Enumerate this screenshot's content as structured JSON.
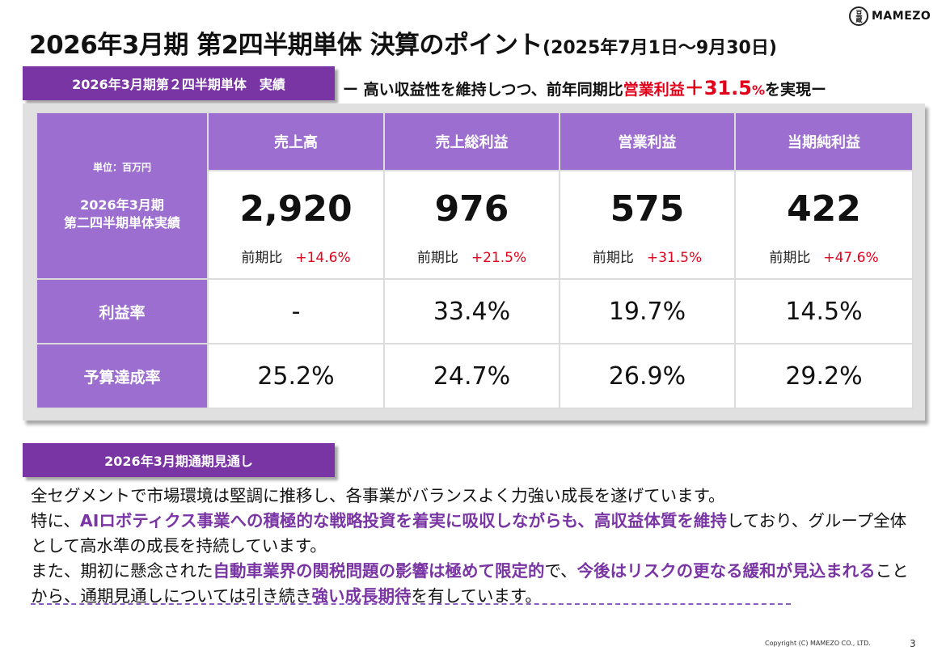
{
  "header": {
    "title": "2026年3月期 第2四半期単体 決算のポイント",
    "period": "(2025年7月1日～9月30日)"
  },
  "logo": {
    "text": "MAMEZO",
    "mark": "豆蔵"
  },
  "results_section": {
    "banner": "2026年3月期第２四半期単体　実績",
    "tagline_prefix": "ー 高い収益性を維持しつつ、前年同期比",
    "tagline_highlight": "営業利益",
    "tagline_value": "＋31.5",
    "tagline_percent": "%",
    "tagline_suffix": "を実現ー"
  },
  "table": {
    "unit": "単位：百万円",
    "row_label_line1": "2026年3月期",
    "row_label_line2": "第二四半期単体実績",
    "columns": [
      "売上高",
      "売上総利益",
      "営業利益",
      "当期純利益"
    ],
    "actuals": [
      "2,920",
      "976",
      "575",
      "422"
    ],
    "compare_label": "前期比",
    "yoy": [
      "+14.6%",
      "+21.5%",
      "+31.5%",
      "+47.6%"
    ],
    "margin_label": "利益率",
    "margins": [
      "-",
      "33.4%",
      "19.7%",
      "14.5%"
    ],
    "budget_label": "予算達成率",
    "budget": [
      "25.2%",
      "24.7%",
      "26.9%",
      "29.2%"
    ]
  },
  "outlook_section": {
    "banner": "2026年3月期通期見通し",
    "p1": "全セグメントで市場環境は堅調に推移し、各事業がバランスよく力強い成長を遂げています。",
    "p2_a": "特に、",
    "p2_hl": "AIロボティクス事業への積極的な戦略投資を着実に吸収しながらも、高収益体質を維持",
    "p2_b": "しており、グループ全体として高水準の成長を持続しています。",
    "p3_a": "また、期初に懸念された",
    "p3_hl1": "自動車業界の関税問題の影響は極めて限定的",
    "p3_b": "で、",
    "p3_hl2": "今後はリスクの更なる緩和が見込まれる",
    "p3_c": "ことから、通期見通しについては引き続き",
    "p3_hl3": "強い成長期待",
    "p3_d": "を有しています。"
  },
  "footer": {
    "copyright": "Copyright (C) MAMEZO  CO., LTD.",
    "page": "3"
  },
  "colors": {
    "brand_purple": "#7a35a4",
    "header_purple": "#9b6ed0",
    "accent_red": "#e3001b"
  }
}
